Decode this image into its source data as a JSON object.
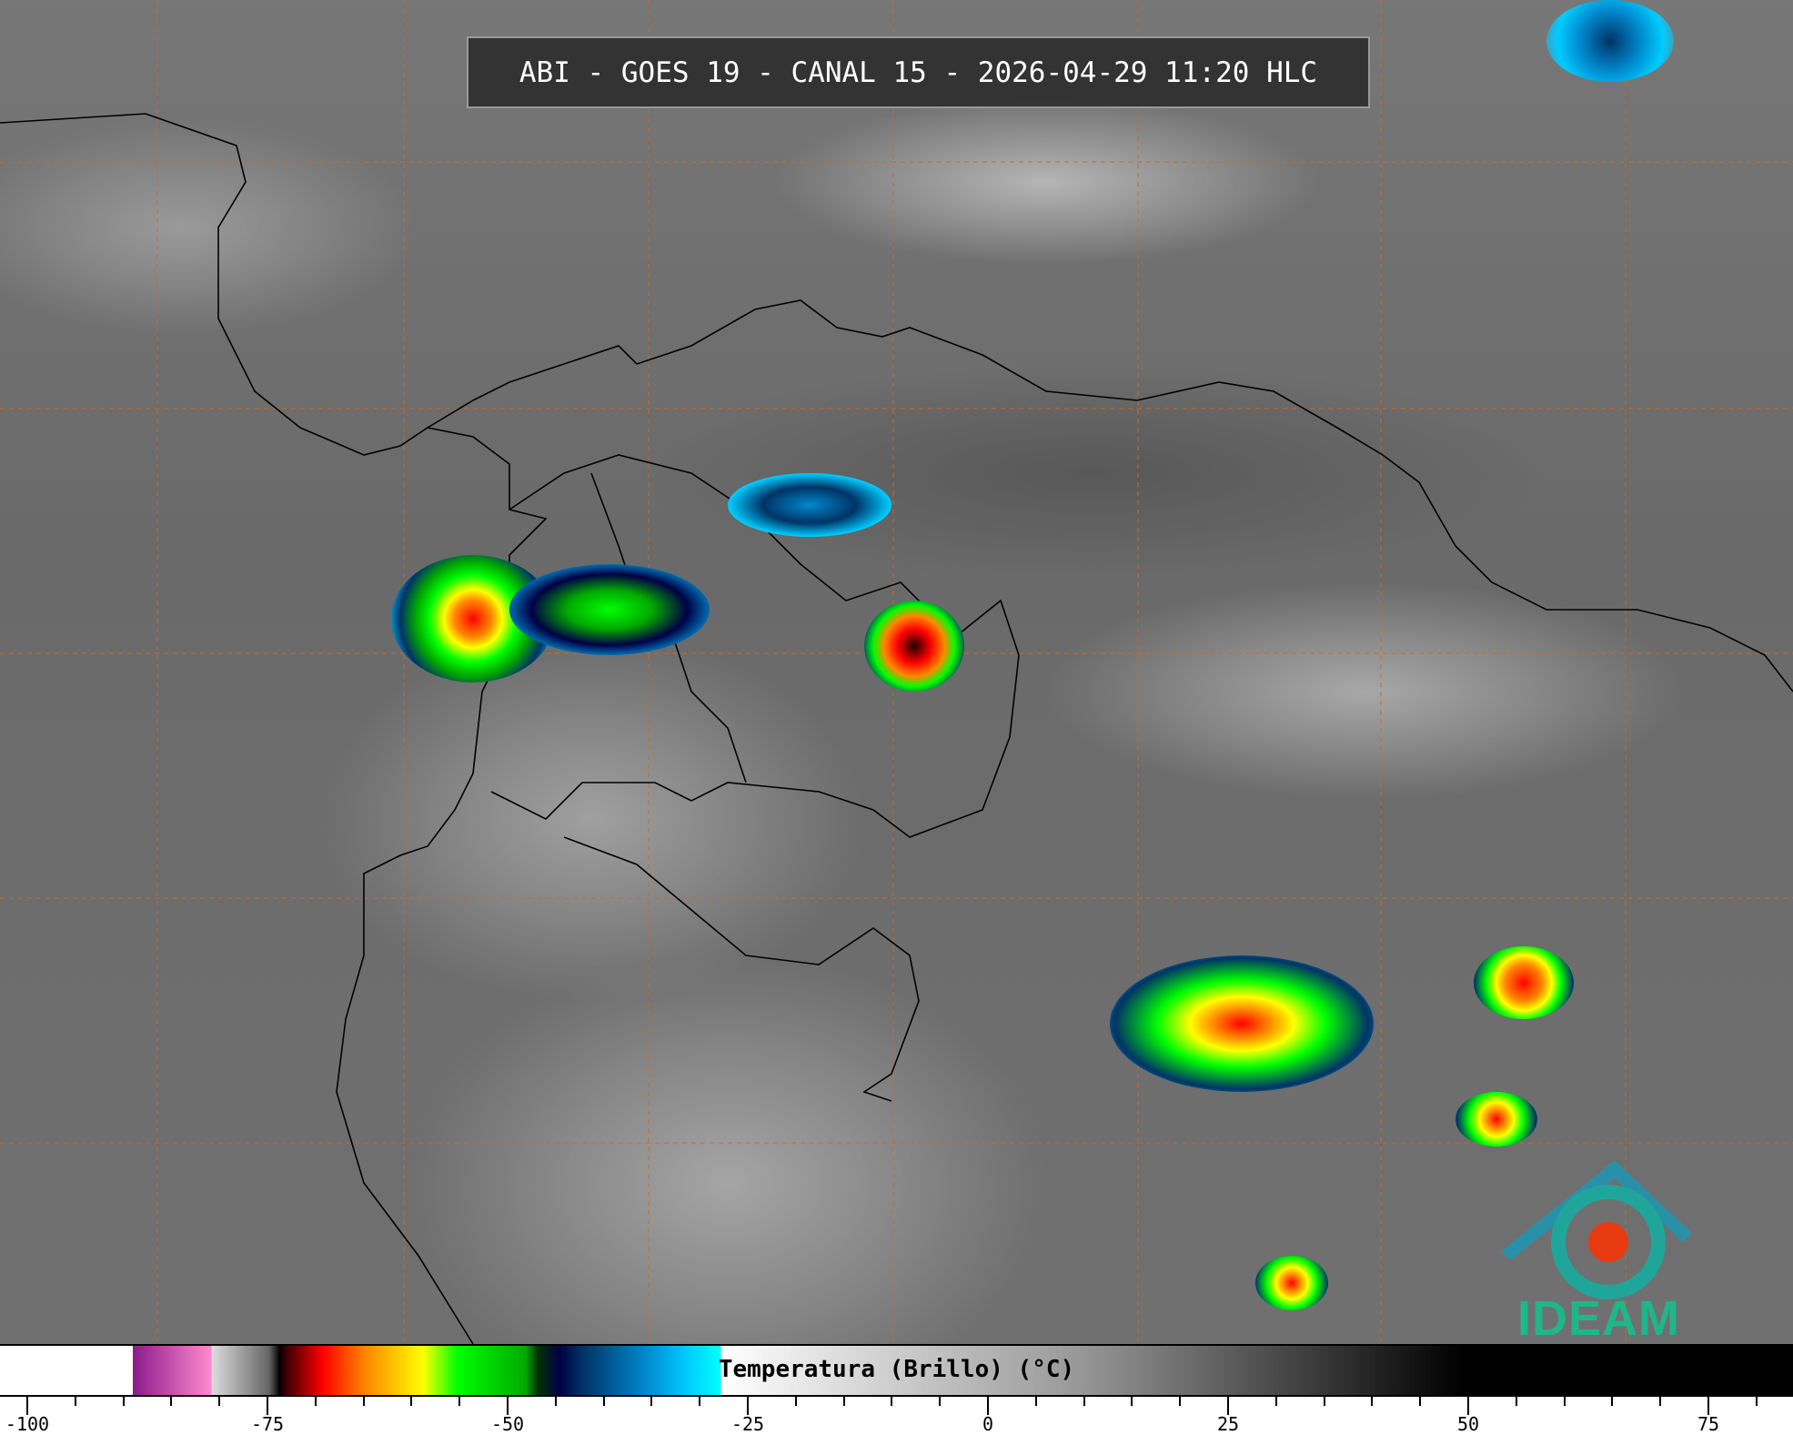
{
  "title": "ABI - GOES 19 - CANAL 15 - 2026-04-29 11:20 HLC",
  "colorbar": {
    "label": "Temperatura (Brillo) (°C)",
    "min": -100,
    "max": 85,
    "tick_labels": [
      "-100",
      "-75",
      "-50",
      "-25",
      "0",
      "25",
      "50",
      "75"
    ],
    "tick_values": [
      -100,
      -75,
      -50,
      -25,
      0,
      25,
      50,
      75
    ]
  },
  "logo": {
    "text": "IDEAM",
    "color": "#1fb68a"
  },
  "colors": {
    "grid": "#d2691e",
    "coast": "#000000"
  }
}
